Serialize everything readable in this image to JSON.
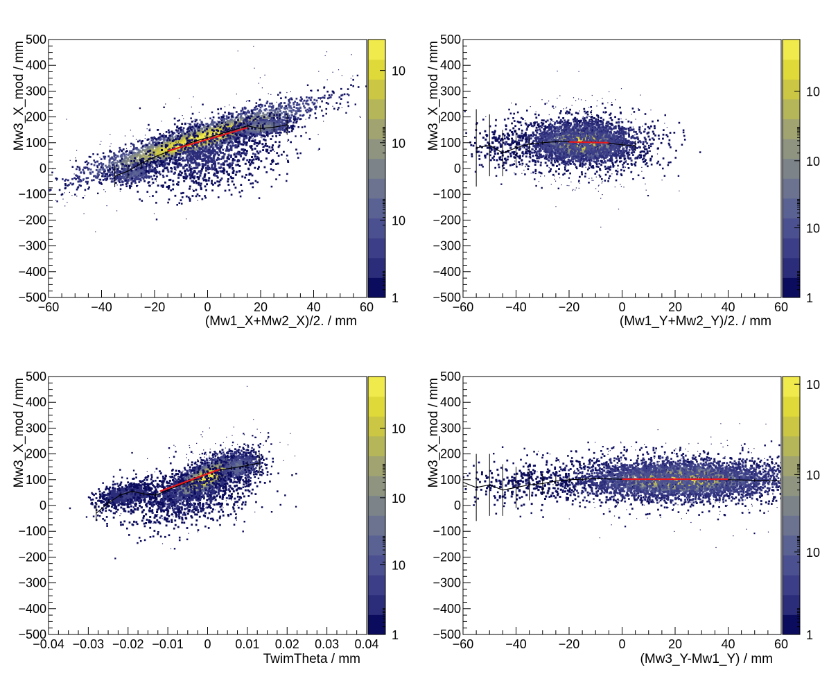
{
  "colors": {
    "frame": "#000000",
    "profile": "#000000",
    "fit_line": "#e8191c",
    "palette": [
      "#0c0c5e",
      "#2b2c7a",
      "#3c3f87",
      "#4b5090",
      "#5a6293",
      "#6b7390",
      "#7c848a",
      "#8e9480",
      "#a1a470",
      "#b5b55a",
      "#cbc744",
      "#e0d93a",
      "#f1ea4c"
    ]
  },
  "chart_data": [
    {
      "id": "pad1",
      "type": "heatmap",
      "xlabel": "(Mw1_X+Mw2_X)/2. / mm",
      "ylabel": "Mw3_X_mod / mm",
      "xlim": [
        -60,
        60
      ],
      "ylim": [
        -500,
        500
      ],
      "xticks": [
        -60,
        -40,
        -20,
        0,
        20,
        40,
        60
      ],
      "xtick_labels": [
        "−60",
        "−40",
        "−20",
        "0",
        "20",
        "40",
        "60"
      ],
      "yticks": [
        -500,
        -400,
        -300,
        -200,
        -100,
        0,
        100,
        200,
        300,
        400,
        500
      ],
      "ytick_labels": [
        "−500",
        "−400",
        "−300",
        "−200",
        "−100",
        "0",
        "100",
        "200",
        "300",
        "400",
        "500"
      ],
      "colorbar": {
        "scale": "log",
        "labels": [
          "1",
          "10",
          "10",
          "10"
        ],
        "label_levels": [
          0,
          0.3,
          0.6,
          0.88
        ]
      },
      "density": [
        {
          "x": -4,
          "y": 110,
          "sx": 22,
          "sy": 30,
          "slope": 3.2,
          "peak": 1.0,
          "n": 2600
        },
        {
          "x": 20,
          "y": 160,
          "sx": 6,
          "sy": 18,
          "slope": 1.0,
          "peak": 0.55,
          "n": 600
        },
        {
          "x": -28,
          "y": -20,
          "sx": 5,
          "sy": 20,
          "slope": 1.5,
          "peak": 0.35,
          "n": 300
        },
        {
          "x": 0,
          "y": 50,
          "sx": 14,
          "sy": 70,
          "slope": 1.5,
          "peak": 0.12,
          "n": 1000
        }
      ],
      "profile": {
        "x": [
          -35,
          -30,
          -25,
          -20,
          -15,
          -10,
          -5,
          0,
          5,
          10,
          15,
          20,
          25,
          30
        ],
        "y": [
          -30,
          -10,
          20,
          45,
          65,
          85,
          105,
          120,
          135,
          150,
          165,
          155,
          160,
          170
        ],
        "err": [
          40,
          30,
          20,
          10,
          6,
          5,
          4,
          4,
          5,
          6,
          10,
          15,
          20,
          40
        ]
      },
      "fit": {
        "x": [
          -15,
          15
        ],
        "y": [
          68,
          158
        ]
      }
    },
    {
      "id": "pad2",
      "type": "heatmap",
      "xlabel": "(Mw1_Y+Mw2_Y)/2. / mm",
      "ylabel": "Mw3_X_mod / mm",
      "xlim": [
        -60,
        60
      ],
      "ylim": [
        -500,
        500
      ],
      "xticks": [
        -60,
        -40,
        -20,
        0,
        20,
        40,
        60
      ],
      "xtick_labels": [
        "−60",
        "−40",
        "−20",
        "0",
        "20",
        "40",
        "60"
      ],
      "yticks": [
        -500,
        -400,
        -300,
        -200,
        -100,
        0,
        100,
        200,
        300,
        400,
        500
      ],
      "ytick_labels": [
        "−500",
        "−400",
        "−300",
        "−200",
        "−100",
        "0",
        "100",
        "200",
        "300",
        "400",
        "500"
      ],
      "colorbar": {
        "scale": "log",
        "labels": [
          "1",
          "10",
          "10",
          "10"
        ],
        "label_levels": [
          0,
          0.27,
          0.53,
          0.8
        ]
      },
      "density": [
        {
          "x": -15,
          "y": 100,
          "sx": 8,
          "sy": 35,
          "slope": 0,
          "peak": 1.0,
          "n": 2600
        },
        {
          "x": -15,
          "y": 100,
          "sx": 15,
          "sy": 55,
          "slope": 0,
          "peak": 0.25,
          "n": 1400
        },
        {
          "x": -45,
          "y": 90,
          "sx": 6,
          "sy": 40,
          "slope": 0,
          "peak": 0.06,
          "n": 150
        }
      ],
      "profile": {
        "x": [
          -55,
          -50,
          -45,
          -40,
          -35,
          -30,
          -25,
          -20,
          -15,
          -10,
          -5,
          0,
          5
        ],
        "y": [
          80,
          90,
          60,
          80,
          95,
          100,
          104,
          104,
          103,
          102,
          98,
          92,
          88
        ],
        "err": [
          150,
          120,
          90,
          70,
          30,
          8,
          5,
          4,
          4,
          4,
          6,
          10,
          20
        ]
      },
      "fit": {
        "x": [
          -20,
          -5
        ],
        "y": [
          103,
          100
        ]
      }
    },
    {
      "id": "pad3",
      "type": "heatmap",
      "xlabel": "TwimTheta / mm",
      "ylabel": "Mw3_X_mod / mm",
      "xlim": [
        -0.04,
        0.04
      ],
      "ylim": [
        -500,
        500
      ],
      "xticks": [
        -0.04,
        -0.03,
        -0.02,
        -0.01,
        0,
        0.01,
        0.02,
        0.03,
        0.04
      ],
      "xtick_labels": [
        "−0.04",
        "−0.03",
        "−0.02",
        "−0.01",
        "0",
        "0.01",
        "0.02",
        "0.03",
        "0.04"
      ],
      "yticks": [
        -500,
        -400,
        -300,
        -200,
        -100,
        0,
        100,
        200,
        300,
        400,
        500
      ],
      "ytick_labels": [
        "−500",
        "−400",
        "−300",
        "−200",
        "−100",
        "0",
        "100",
        "200",
        "300",
        "400",
        "500"
      ],
      "colorbar": {
        "scale": "log",
        "labels": [
          "1",
          "10",
          "10",
          "10"
        ],
        "label_levels": [
          0,
          0.27,
          0.53,
          0.8
        ]
      },
      "density": [
        {
          "x": 0.0,
          "y": 110,
          "sx": 0.005,
          "sy": 30,
          "slope": 7000,
          "peak": 1.0,
          "n": 2400
        },
        {
          "x": 0.008,
          "y": 150,
          "sx": 0.003,
          "sy": 25,
          "slope": 3000,
          "peak": 0.4,
          "n": 500
        },
        {
          "x": -0.02,
          "y": 40,
          "sx": 0.004,
          "sy": 25,
          "slope": 2000,
          "peak": 0.18,
          "n": 700
        },
        {
          "x": -0.005,
          "y": 40,
          "sx": 0.009,
          "sy": 60,
          "slope": 3000,
          "peak": 0.1,
          "n": 900
        }
      ],
      "profile": {
        "x": [
          -0.028,
          -0.025,
          -0.022,
          -0.019,
          -0.016,
          -0.013,
          -0.01,
          -0.006,
          -0.002,
          0.002,
          0.006,
          0.01,
          0.013
        ],
        "y": [
          -30,
          10,
          40,
          55,
          45,
          40,
          60,
          85,
          110,
          135,
          145,
          155,
          165
        ],
        "err": [
          30,
          15,
          10,
          8,
          8,
          10,
          8,
          5,
          4,
          5,
          8,
          15,
          40
        ]
      },
      "fit": {
        "x": [
          -0.012,
          0.003
        ],
        "y": [
          55,
          140
        ]
      }
    },
    {
      "id": "pad4",
      "type": "heatmap",
      "xlabel": "(Mw3_Y-Mw1_Y) / mm",
      "ylabel": "Mw3_X_mod / mm",
      "xlim": [
        -60,
        60
      ],
      "ylim": [
        -500,
        500
      ],
      "xticks": [
        -60,
        -40,
        -20,
        0,
        20,
        40,
        60
      ],
      "xtick_labels": [
        "−60",
        "−40",
        "−20",
        "0",
        "20",
        "40",
        "60"
      ],
      "yticks": [
        -500,
        -400,
        -300,
        -200,
        -100,
        0,
        100,
        200,
        300,
        400,
        500
      ],
      "ytick_labels": [
        "−500",
        "−400",
        "−300",
        "−200",
        "−100",
        "0",
        "100",
        "200",
        "300",
        "400",
        "500"
      ],
      "colorbar": {
        "scale": "log",
        "labels": [
          "1",
          "10",
          "10",
          "10"
        ],
        "label_levels": [
          0,
          0.32,
          0.62,
          0.97
        ]
      },
      "density": [
        {
          "x": 22,
          "y": 100,
          "sx": 16,
          "sy": 30,
          "slope": 0,
          "peak": 1.0,
          "n": 3400
        },
        {
          "x": 22,
          "y": 100,
          "sx": 26,
          "sy": 50,
          "slope": 0,
          "peak": 0.3,
          "n": 2000
        },
        {
          "x": -35,
          "y": 85,
          "sx": 12,
          "sy": 45,
          "slope": 0,
          "peak": 0.05,
          "n": 250
        }
      ],
      "profile": {
        "x": [
          -60,
          -55,
          -50,
          -45,
          -40,
          -35,
          -30,
          -25,
          -20,
          -15,
          -10,
          0,
          10,
          20,
          30,
          40,
          50,
          60
        ],
        "y": [
          90,
          70,
          80,
          60,
          70,
          80,
          85,
          95,
          100,
          102,
          104,
          102,
          102,
          102,
          102,
          100,
          98,
          95
        ],
        "err": [
          120,
          130,
          120,
          100,
          80,
          60,
          40,
          20,
          10,
          6,
          4,
          3,
          3,
          3,
          3,
          4,
          6,
          10
        ]
      },
      "fit": {
        "x": [
          0,
          40
        ],
        "y": [
          102,
          102
        ]
      }
    }
  ]
}
